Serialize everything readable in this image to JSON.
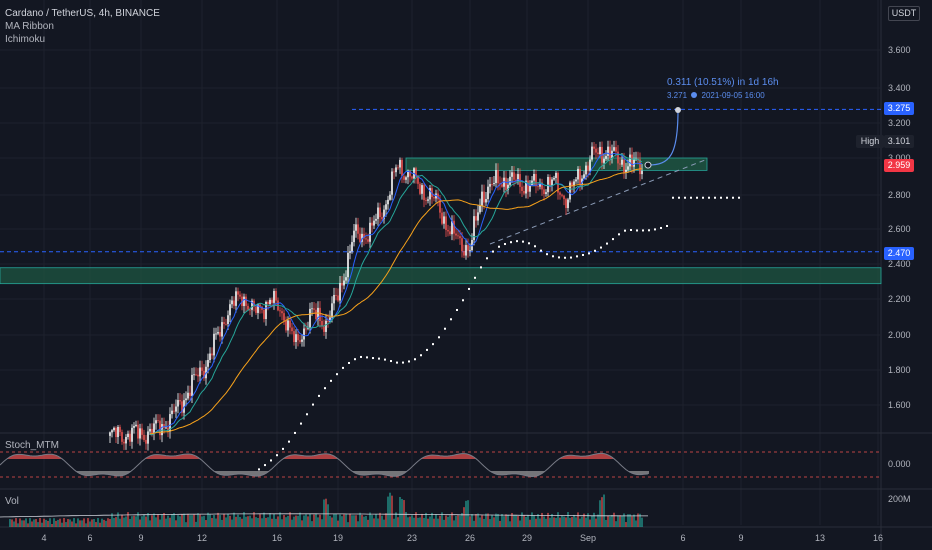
{
  "header": {
    "symbol_line": "Cardano / TetherUS, 4h, BINANCE",
    "indicators": [
      "MA Ribbon",
      "Ichimoku"
    ],
    "currency": "USDT"
  },
  "price_axis": {
    "labels": [
      "3.600",
      "3.400",
      "3.200",
      "3.000",
      "2.800",
      "2.600",
      "2.400",
      "2.200",
      "2.000",
      "1.800",
      "1.600"
    ]
  },
  "price_tags": {
    "target": "3.275",
    "high_label": "High",
    "high": "3.101",
    "last": "2.959",
    "line": "2.470"
  },
  "projection": {
    "headline": "0.311 (10.51%) in 1d 16h",
    "detail": "3.271",
    "datetime": "2021-09-05  16:00"
  },
  "oscillator": {
    "name": "Stoch_MTM",
    "zero": "0.000"
  },
  "volume": {
    "name": "Vol",
    "scale": "200M"
  },
  "time_axis": [
    "4",
    "6",
    "9",
    "12",
    "16",
    "19",
    "23",
    "26",
    "29",
    "Sep",
    "6",
    "9",
    "13",
    "16"
  ],
  "colors": {
    "bg": "#131722",
    "up": "#ffffff",
    "down": "#ef5350",
    "ma_fast": "#2962ff",
    "ma_mid": "#26a69a",
    "ma_slow": "#f7a21b",
    "zone": "#1e5642",
    "line_tag": "#2962ff",
    "last_tag": "#f23645"
  },
  "chart_data": {
    "type": "line",
    "ylim": [
      1.45,
      3.72
    ],
    "x_axis_ticks": [
      "4",
      "6",
      "9",
      "12",
      "16",
      "19",
      "23",
      "26",
      "29",
      "Sep",
      "6",
      "9",
      "13",
      "16"
    ],
    "key_levels": {
      "resistance_zone": [
        2.93,
        3.0
      ],
      "support_zone": [
        2.29,
        2.38
      ],
      "horizontal_line": 2.47,
      "target": 3.275
    },
    "price_path": [
      [
        0,
        1.43
      ],
      [
        20,
        1.45
      ],
      [
        30,
        1.52
      ],
      [
        40,
        1.7
      ],
      [
        50,
        1.88
      ],
      [
        58,
        2.12
      ],
      [
        66,
        2.23
      ],
      [
        72,
        2.12
      ],
      [
        80,
        2.2
      ],
      [
        88,
        2.1
      ],
      [
        93,
        1.93
      ],
      [
        100,
        2.12
      ],
      [
        108,
        2.07
      ],
      [
        114,
        2.22
      ],
      [
        122,
        2.56
      ],
      [
        130,
        2.58
      ],
      [
        138,
        2.75
      ],
      [
        144,
        2.96
      ],
      [
        150,
        2.9
      ],
      [
        158,
        2.8
      ],
      [
        164,
        2.74
      ],
      [
        170,
        2.58
      ],
      [
        176,
        2.52
      ],
      [
        180,
        2.48
      ],
      [
        186,
        2.8
      ],
      [
        196,
        2.88
      ],
      [
        204,
        2.86
      ],
      [
        212,
        2.84
      ],
      [
        222,
        2.86
      ],
      [
        228,
        2.77
      ],
      [
        236,
        2.92
      ],
      [
        242,
        3.02
      ],
      [
        248,
        3.04
      ],
      [
        254,
        2.99
      ],
      [
        260,
        2.96
      ],
      [
        266,
        2.96
      ]
    ],
    "projection": {
      "from": 2.96,
      "to": 3.271,
      "change": "0.311 (10.51%)",
      "duration": "1d 16h"
    },
    "volume_spikes": [
      [
        108,
        145
      ],
      [
        140,
        210
      ],
      [
        146,
        180
      ],
      [
        178,
        140
      ],
      [
        246,
        180
      ]
    ]
  }
}
